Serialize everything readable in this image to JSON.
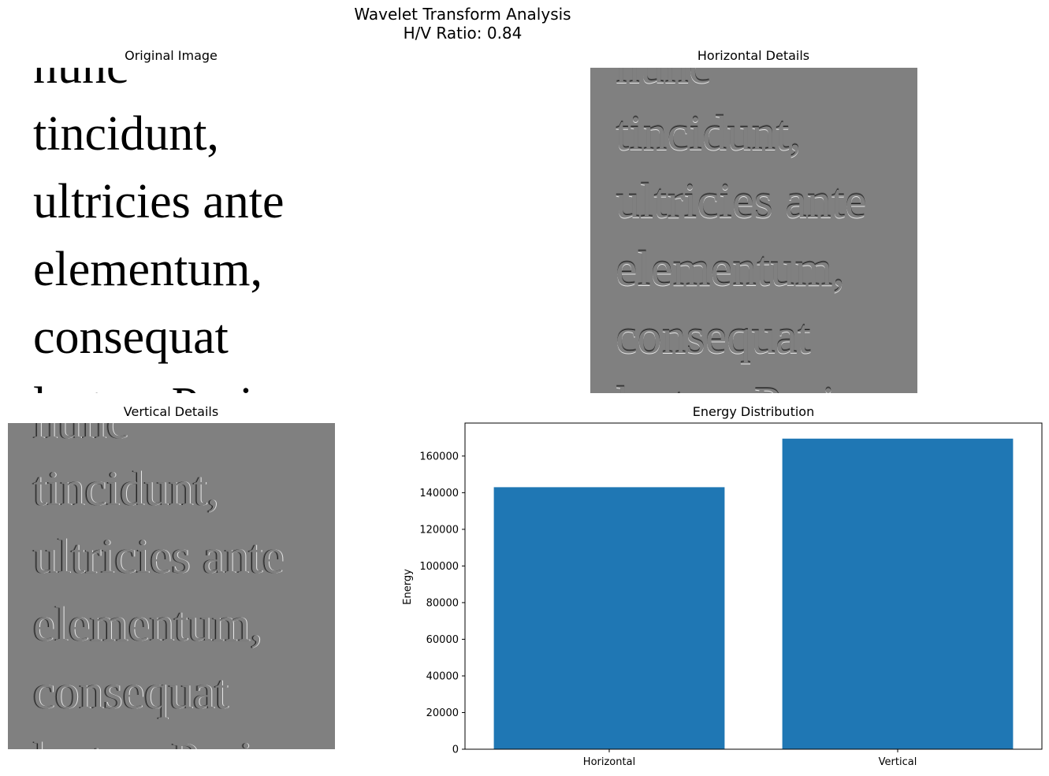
{
  "figure": {
    "title_line1": "Wavelet Transform Analysis",
    "title_line2": "H/V Ratio: 0.84"
  },
  "panels": {
    "original": {
      "title": "Original Image"
    },
    "horizontal": {
      "title": "Horizontal Details"
    },
    "vertical": {
      "title": "Vertical Details"
    }
  },
  "image_text_lines": [
    "nunc",
    "tincidunt,",
    "ultricies ante",
    "elementum,",
    "consequat",
    "lectus. Proin"
  ],
  "colors": {
    "bar": "#1f77b4",
    "detail_background": "#808080"
  },
  "chart_data": {
    "type": "bar",
    "title": "Energy Distribution",
    "xlabel": "",
    "ylabel": "Energy",
    "categories": [
      "Horizontal",
      "Vertical"
    ],
    "values": [
      143000,
      169500
    ],
    "ylim": [
      0,
      178000
    ],
    "yticks": [
      0,
      20000,
      40000,
      60000,
      80000,
      100000,
      120000,
      140000,
      160000
    ],
    "grid": false,
    "legend": "none"
  }
}
